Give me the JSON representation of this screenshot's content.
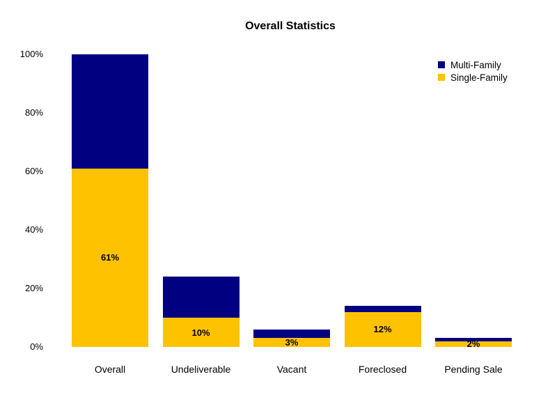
{
  "chart_data": {
    "type": "bar",
    "stacked": true,
    "title": "Overall Statistics",
    "categories": [
      "Overall",
      "Undeliverable",
      "Vacant",
      "Foreclosed",
      "Pending Sale"
    ],
    "series": [
      {
        "name": "Single-Family",
        "color": "#FFC200",
        "values": [
          61,
          10,
          3,
          12,
          2
        ],
        "labels": [
          "61%",
          "10%",
          "3%",
          "12%",
          "2%"
        ]
      },
      {
        "name": "Multi-Family",
        "color": "#000080",
        "values": [
          39,
          14,
          3,
          2,
          1
        ],
        "labels": [
          "",
          "",
          "",
          "",
          ""
        ]
      }
    ],
    "y_ticks": [
      "0%",
      "20%",
      "40%",
      "60%",
      "80%",
      "100%"
    ],
    "ylim": [
      0,
      100
    ],
    "xlabel": "",
    "ylabel": "",
    "grid": false,
    "legend_position": "top-right"
  },
  "legend": {
    "items": [
      {
        "label": "Multi-Family",
        "color": "#000080"
      },
      {
        "label": "Single-Family",
        "color": "#FFC200"
      }
    ]
  }
}
